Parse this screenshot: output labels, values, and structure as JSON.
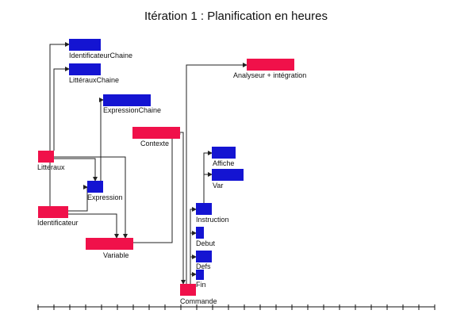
{
  "title": "Itération 1 : Planification en heures",
  "colors": {
    "red": "#f0114a",
    "blue": "#1414d2",
    "line": "#222222"
  },
  "tasks": [
    {
      "id": "identificateurchaine",
      "label": "IdentificateurChaine",
      "color": "blue"
    },
    {
      "id": "litterauxchaine",
      "label": "LittérauxChaine",
      "color": "blue"
    },
    {
      "id": "expressionchaine",
      "label": "ExpressionChaine",
      "color": "blue"
    },
    {
      "id": "litteraux",
      "label": "Litteraux",
      "color": "red"
    },
    {
      "id": "expression",
      "label": "Expression",
      "color": "blue"
    },
    {
      "id": "identificateur",
      "label": "Identificateur",
      "color": "red"
    },
    {
      "id": "variable",
      "label": "Variable",
      "color": "red"
    },
    {
      "id": "contexte",
      "label": "Contexte",
      "color": "red"
    },
    {
      "id": "analyseur",
      "label": "Analyseur + intégration",
      "color": "red"
    },
    {
      "id": "affiche",
      "label": "Affiche",
      "color": "blue"
    },
    {
      "id": "var",
      "label": "Var",
      "color": "blue"
    },
    {
      "id": "instruction",
      "label": "Instruction",
      "color": "blue"
    },
    {
      "id": "debut",
      "label": "Debut",
      "color": "blue"
    },
    {
      "id": "defs",
      "label": "Defs",
      "color": "blue"
    },
    {
      "id": "fin",
      "label": "Fin",
      "color": "blue"
    },
    {
      "id": "commande",
      "label": "Commande",
      "color": "red"
    }
  ]
}
